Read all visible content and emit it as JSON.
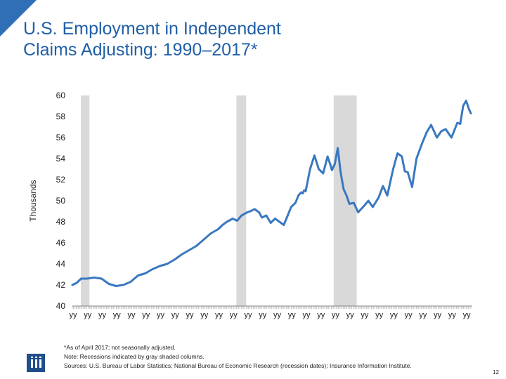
{
  "header": {
    "title_line1": "U.S. Employment in Independent",
    "title_line2": "Claims Adjusting: 1990–2017*"
  },
  "colors": {
    "accent": "#2f6fb6",
    "line": "#3a78c0",
    "recession": "#d9d9d9",
    "title": "#1f5fa8"
  },
  "chart_data": {
    "type": "line",
    "ylabel": "Thousands",
    "xlabel": "",
    "ylim": [
      40,
      60
    ],
    "yticks": [
      40,
      42,
      44,
      46,
      48,
      50,
      52,
      54,
      56,
      58,
      60
    ],
    "xlim": [
      1990,
      2017.33
    ],
    "x_tick_label": "yy",
    "x_tick_label_count": 28,
    "grid": false,
    "legend": "none",
    "recessions": [
      [
        1990.58,
        1991.17
      ],
      [
        2001.25,
        2001.92
      ],
      [
        2007.92,
        2009.5
      ]
    ],
    "series": [
      {
        "x": [
          1990.0,
          1990.3,
          1990.6,
          1991.0,
          1991.5,
          1992.0,
          1992.5,
          1993.0,
          1993.5,
          1994.0,
          1994.5,
          1995.0,
          1995.5,
          1996.0,
          1996.5,
          1997.0,
          1997.5,
          1998.0,
          1998.5,
          1999.0,
          1999.5,
          2000.0,
          2000.3,
          2000.6,
          2001.0,
          2001.3,
          2001.6,
          2002.0,
          2002.2,
          2002.5,
          2002.8,
          2003.0,
          2003.3,
          2003.6,
          2003.9,
          2004.2,
          2004.5,
          2004.8,
          2005.0,
          2005.3,
          2005.5,
          2005.7,
          2005.8,
          2005.9,
          2006.0,
          2006.3,
          2006.6,
          2006.9,
          2007.2,
          2007.5,
          2007.7,
          2007.8,
          2007.9,
          2008.0,
          2008.2,
          2008.4,
          2008.6,
          2008.8,
          2009.0,
          2009.3,
          2009.6,
          2010.0,
          2010.3,
          2010.6,
          2011.0,
          2011.3,
          2011.6,
          2012.0,
          2012.3,
          2012.6,
          2012.8,
          2013.0,
          2013.3,
          2013.6,
          2014.0,
          2014.3,
          2014.6,
          2015.0,
          2015.3,
          2015.6,
          2016.0,
          2016.2,
          2016.4,
          2016.6,
          2016.8,
          2017.0,
          2017.2,
          2017.33
        ],
        "values": [
          42.0,
          42.2,
          42.6,
          42.6,
          42.7,
          42.6,
          42.1,
          41.9,
          42.0,
          42.3,
          42.9,
          43.1,
          43.5,
          43.8,
          44.0,
          44.4,
          44.9,
          45.3,
          45.7,
          46.3,
          46.9,
          47.3,
          47.7,
          48.0,
          48.3,
          48.1,
          48.6,
          48.9,
          49.0,
          49.2,
          48.9,
          48.4,
          48.6,
          47.9,
          48.3,
          48.0,
          47.7,
          48.7,
          49.4,
          49.8,
          50.5,
          50.8,
          50.7,
          51.0,
          50.9,
          53.0,
          54.3,
          53.0,
          52.6,
          54.2,
          53.4,
          52.9,
          53.2,
          53.5,
          55.0,
          52.7,
          51.1,
          50.5,
          49.7,
          49.8,
          48.9,
          49.5,
          50.0,
          49.4,
          50.3,
          51.4,
          50.5,
          53.0,
          54.5,
          54.2,
          52.8,
          52.7,
          51.3,
          54.0,
          55.5,
          56.5,
          57.2,
          56.0,
          56.6,
          56.8,
          56.0,
          56.7,
          57.4,
          57.3,
          59.0,
          59.5,
          58.7,
          58.3
        ]
      }
    ]
  },
  "footnotes": {
    "line1": "*As of April 2017; not seasonally adjusted.",
    "line2": "Note: Recessions indicated by gray shaded columns.",
    "line3": "Sources: U.S. Bureau of Labor Statistics;  National Bureau of Economic Research (recession dates); Insurance Information Institute."
  },
  "footer": {
    "page_number": "12"
  }
}
